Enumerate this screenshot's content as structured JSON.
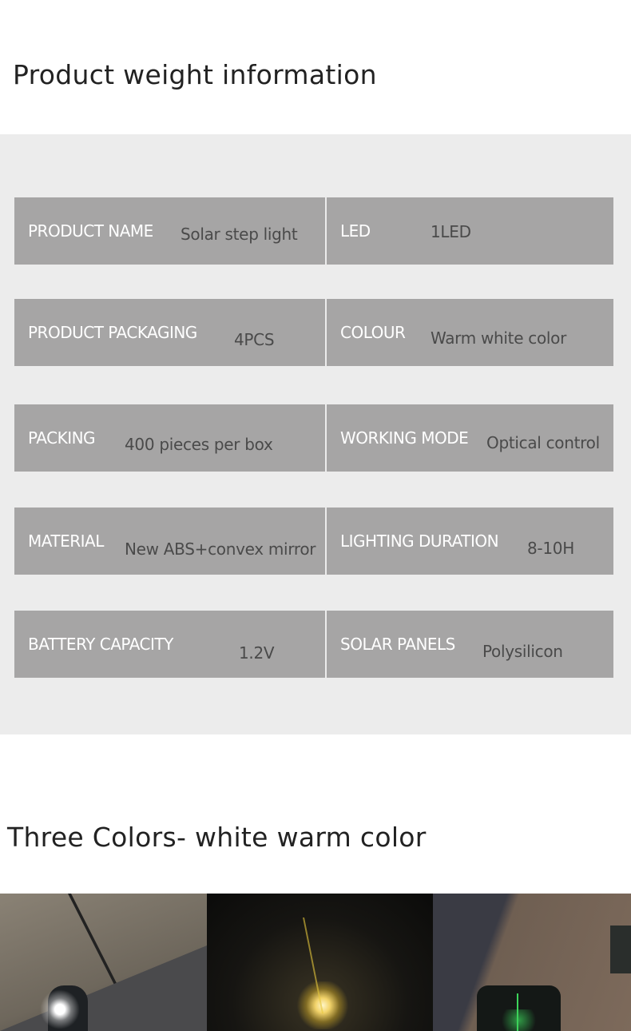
{
  "heading": "Product weight information",
  "colors": {
    "panel_bg": "#ececec",
    "cell_bg": "#a6a5a5",
    "label": "#ffffff",
    "value": "#4a4a4a"
  },
  "specs": [
    {
      "label": "PRODUCT NAME",
      "value": "Solar step light"
    },
    {
      "label": "LED",
      "value": "1LED"
    },
    {
      "label": "PRODUCT PACKAGING",
      "value": "4PCS"
    },
    {
      "label": "COLOUR",
      "value": "Warm white color"
    },
    {
      "label": "PACKING",
      "value": "400 pieces per box"
    },
    {
      "label": "WORKING MODE",
      "value": "Optical control"
    },
    {
      "label": "MATERIAL",
      "value": "New ABS+convex mirror"
    },
    {
      "label": "LIGHTING DURATION",
      "value": "8-10H"
    },
    {
      "label": "BATTERY CAPACITY",
      "value": "1.2V"
    },
    {
      "label": "SOLAR PANELS",
      "value": "Polysilicon"
    }
  ],
  "colors_heading": "Three Colors-  white  warm  color",
  "photos": [
    {
      "light": "white"
    },
    {
      "light": "warm"
    },
    {
      "light": "green"
    }
  ]
}
